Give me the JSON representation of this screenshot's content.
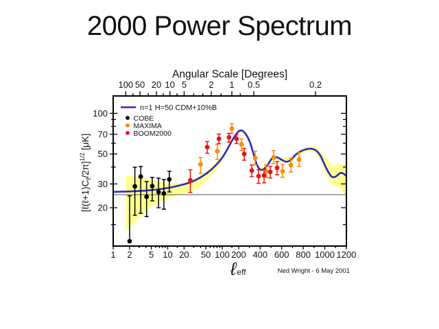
{
  "slide": {
    "title": "2000 Power Spectrum",
    "credit": "Ned Wright - 6 May 2001"
  },
  "chart_data": {
    "type": "scatter",
    "title": "2000 Power Spectrum",
    "top_axis": {
      "label": "Angular Scale [Degrees]",
      "ticks": [
        {
          "label": "100",
          "at_l": 1.7
        },
        {
          "label": "50",
          "at_l": 3.1
        },
        {
          "label": "20",
          "at_l": 6.2
        },
        {
          "label": "10",
          "at_l": 11
        },
        {
          "label": "5",
          "at_l": 20
        },
        {
          "label": "2",
          "at_l": 63
        },
        {
          "label": "1",
          "at_l": 150
        },
        {
          "label": "0.5",
          "at_l": 341
        },
        {
          "label": "0.2",
          "at_l": 914
        }
      ],
      "minor_at_l": [
        2.3,
        4.4,
        8.3,
        14.8,
        30,
        44,
        95,
        215
      ]
    },
    "x_axis": {
      "label_main": "ℓ",
      "label_sub": "eff",
      "scale_note": "log from 1 to 200, linear from 200 to 1200",
      "range": [
        1,
        1200
      ],
      "major_ticks": [
        {
          "label": "1",
          "at": 1
        },
        {
          "label": "2",
          "at": 2
        },
        {
          "label": "5",
          "at": 5
        },
        {
          "label": "10",
          "at": 10
        },
        {
          "label": "20",
          "at": 20
        },
        {
          "label": "50",
          "at": 50
        },
        {
          "label": "100",
          "at": 100
        },
        {
          "label": "200",
          "at": 200
        },
        {
          "label": "400",
          "at": 400
        },
        {
          "label": "600",
          "at": 600
        },
        {
          "label": "800",
          "at": 800
        },
        {
          "label": "1000",
          "at": 1000
        },
        {
          "label": "1200",
          "at": 1200
        }
      ],
      "minor_ticks": [
        3,
        4,
        6,
        7,
        8,
        9,
        15,
        30,
        40,
        60,
        70,
        80,
        90,
        150,
        300,
        500,
        700,
        900,
        1100
      ]
    },
    "y_axis": {
      "label_text": "[ℓ(ℓ+1)Cℓ/2π]1/2 [μK]",
      "label_parts": {
        "pre": "[ℓ(ℓ+1)C",
        "sub": "ℓ",
        "mid": "/2π]",
        "sup": "1/2",
        "post": " [μK]"
      },
      "scale": "log",
      "range": [
        10.4,
        134
      ],
      "major_ticks": [
        {
          "label": "100",
          "at": 100
        },
        {
          "label": "70",
          "at": 70
        },
        {
          "label": "50",
          "at": 50
        },
        {
          "label": "30",
          "at": 30
        },
        {
          "label": "20",
          "at": 20
        }
      ],
      "minor_ticks": [
        90,
        80,
        60,
        40,
        15
      ]
    },
    "reference_line_uK": 25,
    "model_curve": {
      "label": "n=1 H=50 CDM+10%B",
      "color": "#2828cc",
      "points": [
        [
          1,
          26.2
        ],
        [
          1.5,
          26.3
        ],
        [
          2,
          26.4
        ],
        [
          3,
          26.6
        ],
        [
          5,
          27
        ],
        [
          8,
          27.6
        ],
        [
          12,
          28.4
        ],
        [
          18,
          29.5
        ],
        [
          27,
          31
        ],
        [
          40,
          33.6
        ],
        [
          55,
          36.6
        ],
        [
          75,
          41
        ],
        [
          100,
          47
        ],
        [
          125,
          54.5
        ],
        [
          150,
          62.5
        ],
        [
          175,
          69
        ],
        [
          200,
          73.5
        ],
        [
          222,
          74.8
        ],
        [
          248,
          73
        ],
        [
          280,
          67.5
        ],
        [
          310,
          59.5
        ],
        [
          340,
          49.5
        ],
        [
          365,
          42.5
        ],
        [
          395,
          38.6
        ],
        [
          425,
          38.3
        ],
        [
          465,
          41
        ],
        [
          510,
          46.3
        ],
        [
          555,
          47.3
        ],
        [
          600,
          45.3
        ],
        [
          645,
          43.8
        ],
        [
          690,
          45.6
        ],
        [
          730,
          49.5
        ],
        [
          780,
          52.5
        ],
        [
          830,
          54.3
        ],
        [
          880,
          54.6
        ],
        [
          920,
          53
        ],
        [
          960,
          48.5
        ],
        [
          1010,
          39.8
        ],
        [
          1060,
          34.2
        ],
        [
          1100,
          34
        ],
        [
          1145,
          36.2
        ],
        [
          1175,
          35.7
        ],
        [
          1200,
          34.3
        ]
      ]
    },
    "cosmic_variance_band": {
      "color": "#ffff8f",
      "points": [
        [
          1.7,
          13.5,
          35
        ],
        [
          2.5,
          15.5,
          34
        ],
        [
          4,
          19,
          32.5
        ],
        [
          7,
          22,
          31
        ],
        [
          12,
          24,
          30.3
        ],
        [
          20,
          25.5,
          30.8
        ],
        [
          35,
          28,
          33.8
        ],
        [
          60,
          34,
          39.5
        ],
        [
          100,
          45,
          49
        ],
        [
          150,
          60.5,
          64.5
        ],
        [
          222,
          72.6,
          77
        ],
        [
          310,
          57.5,
          61.5
        ],
        [
          395,
          37.1,
          40.1
        ],
        [
          510,
          44.5,
          48.2
        ],
        [
          600,
          43.5,
          47
        ],
        [
          690,
          43.8,
          47.4
        ],
        [
          780,
          50.5,
          54.5
        ],
        [
          880,
          52.5,
          56.7
        ],
        [
          930,
          49,
          56
        ],
        [
          980,
          41,
          50
        ],
        [
          1030,
          33,
          45
        ],
        [
          1080,
          29,
          41
        ],
        [
          1130,
          28.5,
          42
        ],
        [
          1200,
          24,
          42
        ]
      ]
    },
    "series": [
      {
        "name": "COBE",
        "color": "#000000",
        "points": [
          {
            "l": 2,
            "v": 11.3,
            "lo": 11.3,
            "hi": 24.5
          },
          {
            "l": 2.5,
            "v": 28.8,
            "lo": 17.6,
            "hi": 39.9
          },
          {
            "l": 3.2,
            "v": 34.0,
            "lo": 18.2,
            "hi": 40.4
          },
          {
            "l": 4.1,
            "v": 24.1,
            "lo": 17.2,
            "hi": 31.2
          },
          {
            "l": 5.2,
            "v": 28.9,
            "lo": 22.5,
            "hi": 33.5
          },
          {
            "l": 6.8,
            "v": 26.1,
            "lo": 20.0,
            "hi": 33.1
          },
          {
            "l": 8.5,
            "v": 25.5,
            "lo": 19.5,
            "hi": 32.4
          },
          {
            "l": 10.7,
            "v": 32.4,
            "lo": 26.2,
            "hi": 37.3
          }
        ]
      },
      {
        "name": "MAXIMA",
        "color": "#ff8800",
        "points": [
          {
            "l": 40,
            "v": 41.9,
            "lo": 36.0,
            "hi": 47.1
          },
          {
            "l": 81,
            "v": 52.4,
            "lo": 45.5,
            "hi": 59.0
          },
          {
            "l": 150,
            "v": 77.2,
            "lo": 71.1,
            "hi": 83.8
          },
          {
            "l": 226,
            "v": 59.0,
            "lo": 53.0,
            "hi": 64.8
          },
          {
            "l": 354,
            "v": 46.6,
            "lo": 41.5,
            "hi": 52.4
          },
          {
            "l": 455,
            "v": 37.3,
            "lo": 33.6,
            "hi": 41.5
          },
          {
            "l": 525,
            "v": 47.2,
            "lo": 42.4,
            "hi": 53.0
          },
          {
            "l": 608,
            "v": 37.3,
            "lo": 33.6,
            "hi": 41.9
          },
          {
            "l": 685,
            "v": 41.4,
            "lo": 36.8,
            "hi": 46.6
          },
          {
            "l": 761,
            "v": 45.5,
            "lo": 40.4,
            "hi": 51.2
          }
        ]
      },
      {
        "name": "BOOM2000",
        "color": "#e81414",
        "points": [
          {
            "l": 26,
            "v": 31.9,
            "lo": 25.9,
            "hi": 38.2
          },
          {
            "l": 53,
            "v": 56.2,
            "lo": 50.6,
            "hi": 61.8
          },
          {
            "l": 87,
            "v": 64.8,
            "lo": 59.7,
            "hi": 70.3
          },
          {
            "l": 133,
            "v": 66.4,
            "lo": 61.2,
            "hi": 71.1
          },
          {
            "l": 183,
            "v": 64.8,
            "lo": 59.7,
            "hi": 69.5
          },
          {
            "l": 252,
            "v": 50.0,
            "lo": 45.0,
            "hi": 54.9
          },
          {
            "l": 322,
            "v": 37.7,
            "lo": 34.0,
            "hi": 41.5
          },
          {
            "l": 385,
            "v": 34.3,
            "lo": 30.3,
            "hi": 38.2
          },
          {
            "l": 436,
            "v": 34.7,
            "lo": 30.6,
            "hi": 38.6
          },
          {
            "l": 494,
            "v": 36.8,
            "lo": 33.2,
            "hi": 40.4
          },
          {
            "l": 557,
            "v": 39.5,
            "lo": 35.1,
            "hi": 43.9
          }
        ]
      }
    ]
  }
}
